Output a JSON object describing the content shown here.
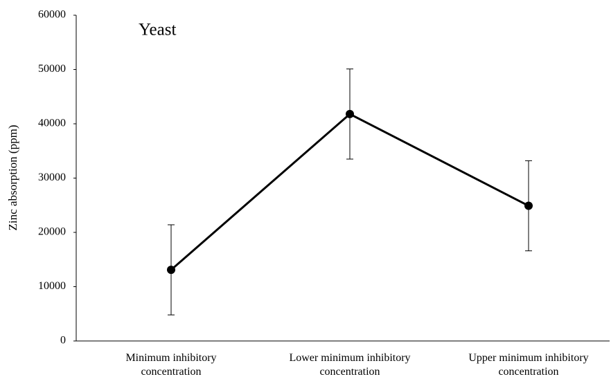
{
  "chart_data": {
    "type": "line",
    "annotation": "Yeast",
    "y_label": "Zinc absorption (ppm)",
    "categories": [
      "Minimum inhibitory\nconcentration",
      "Lower minimum inhibitory\nconcentration",
      "Upper minimum inhibitory\nconcentration"
    ],
    "series": [
      {
        "name": "Yeast",
        "color": "#000000",
        "values": [
          13100,
          41800,
          24900
        ],
        "errors": [
          8300,
          8300,
          8300
        ]
      }
    ],
    "ylim": [
      0,
      60000
    ],
    "yticks": [
      0,
      10000,
      20000,
      30000,
      40000,
      50000,
      60000
    ],
    "grid": false
  }
}
